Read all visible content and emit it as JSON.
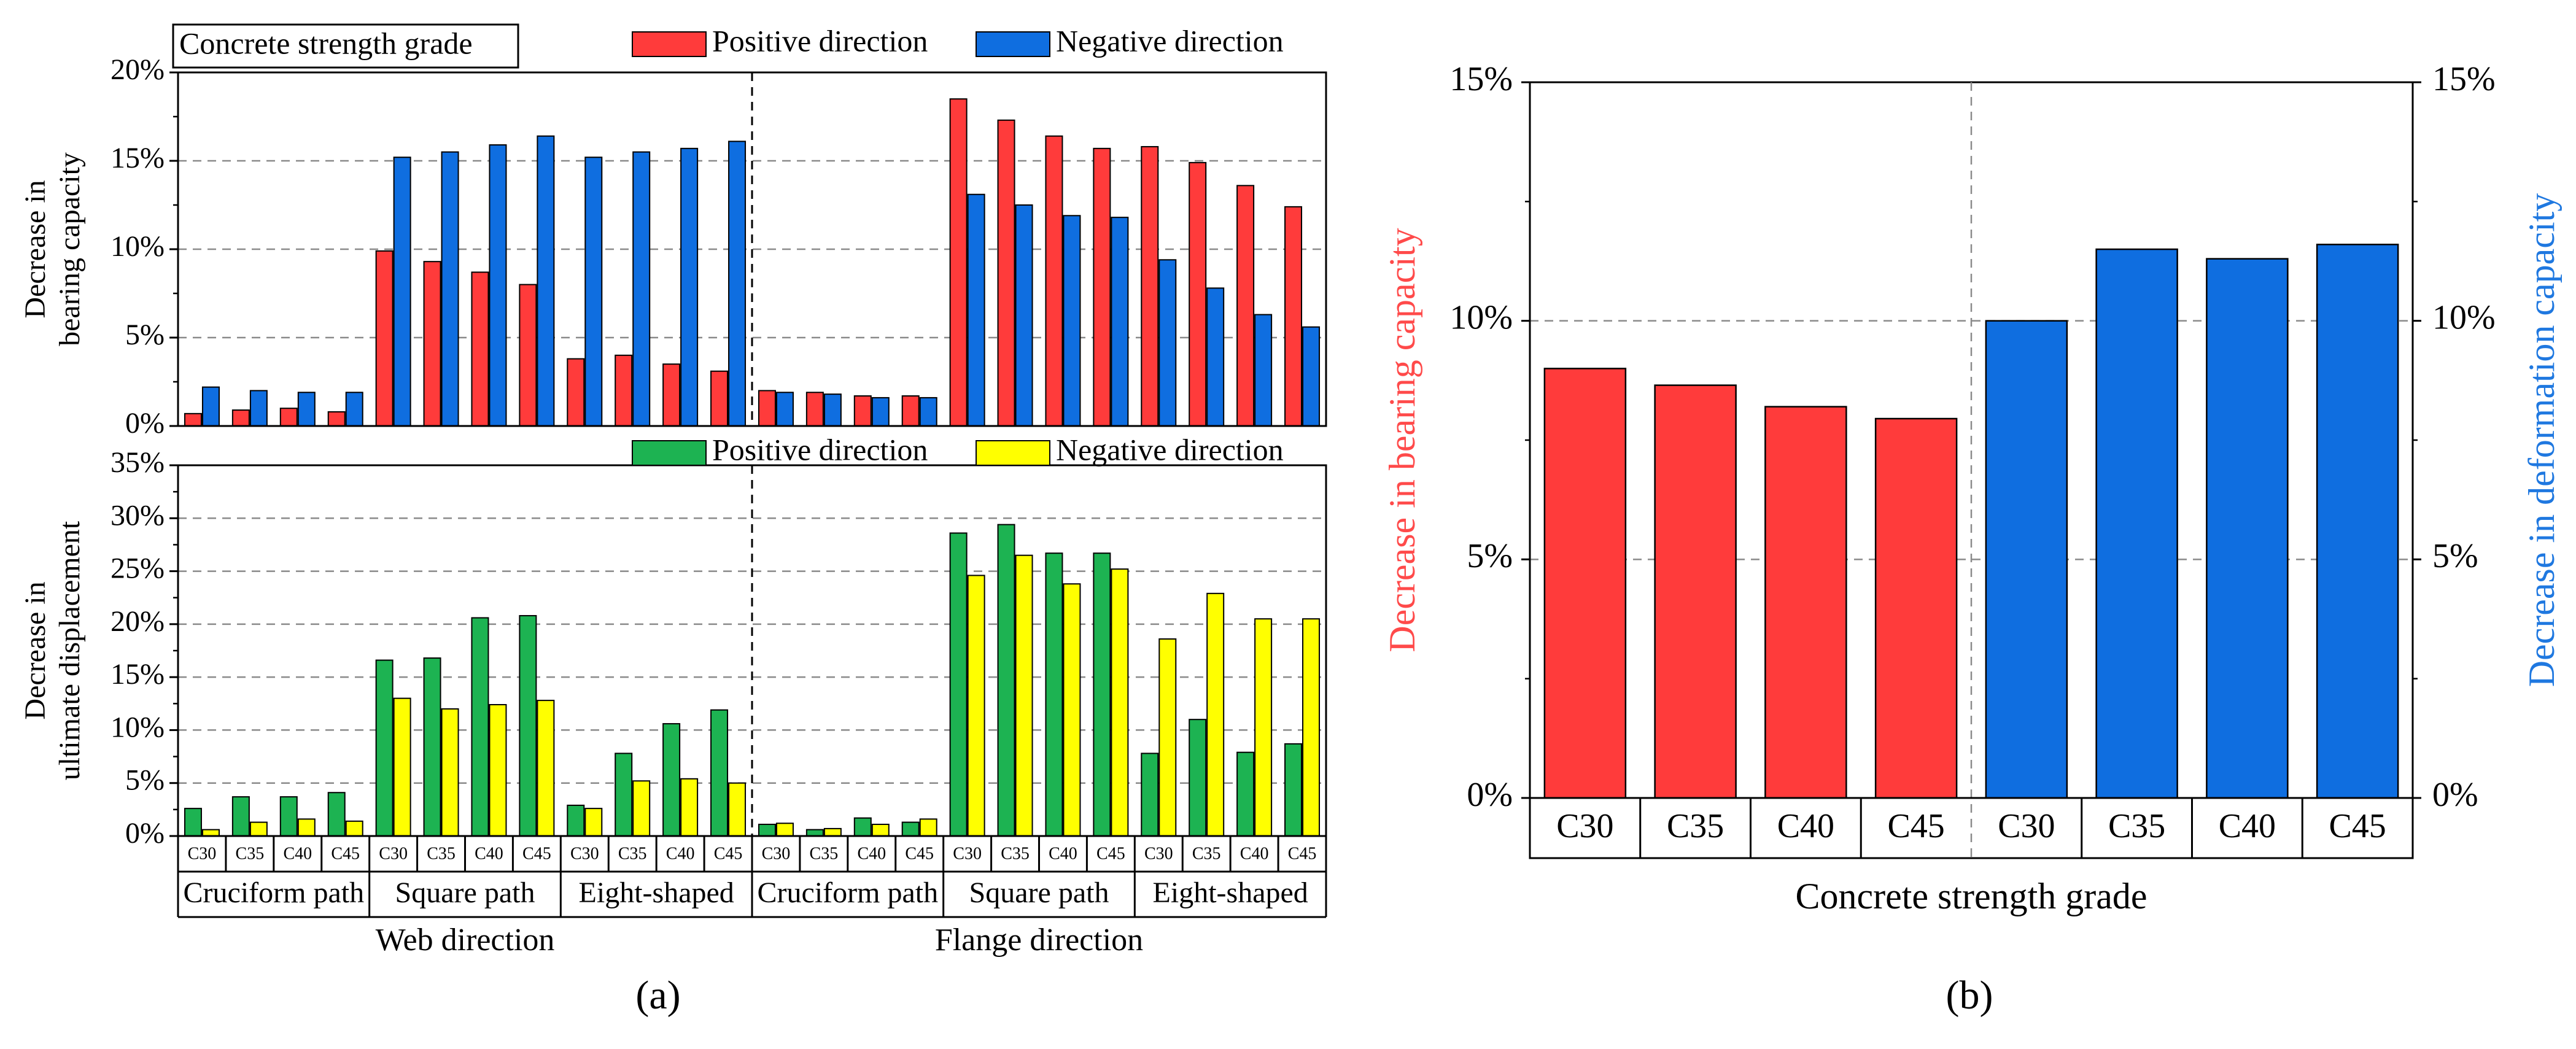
{
  "colors": {
    "red": "#ff3b3b",
    "blue": "#0f6ee0",
    "green": "#1db352",
    "yellow": "#ffff00",
    "red_text": "#ff4a4a",
    "blue_text": "#1f78e0",
    "axis": "#000000",
    "grid": "#8a8a8a"
  },
  "chart_data": [
    {
      "id": "a-top",
      "type": "bar",
      "panel": "(a)",
      "title": "Concrete strength grade",
      "ylabel": [
        "Decrease in",
        "bearing capacity"
      ],
      "ylim": [
        0,
        20
      ],
      "yticks": [
        0,
        5,
        10,
        15,
        20
      ],
      "ytick_labels": [
        "0%",
        "5%",
        "10%",
        "15%",
        "20%"
      ],
      "categories": [
        "C30",
        "C35",
        "C40",
        "C45",
        "C30",
        "C35",
        "C40",
        "C45",
        "C30",
        "C35",
        "C40",
        "C45",
        "C30",
        "C35",
        "C40",
        "C45",
        "C30",
        "C35",
        "C40",
        "C45",
        "C30",
        "C35",
        "C40",
        "C45"
      ],
      "series": [
        {
          "name": "Positive direction",
          "color_key": "red",
          "values": [
            0.7,
            0.9,
            1.0,
            0.8,
            9.9,
            9.3,
            8.7,
            8.0,
            3.8,
            4.0,
            3.5,
            3.1,
            2.0,
            1.9,
            1.7,
            1.7,
            18.5,
            17.3,
            16.4,
            15.7,
            15.8,
            14.9,
            13.6,
            12.4
          ]
        },
        {
          "name": "Negative direction",
          "color_key": "blue",
          "values": [
            2.2,
            2.0,
            1.9,
            1.9,
            15.2,
            15.5,
            15.9,
            16.4,
            15.2,
            15.5,
            15.7,
            16.1,
            1.9,
            1.8,
            1.6,
            1.6,
            13.1,
            12.5,
            11.9,
            11.8,
            9.4,
            7.8,
            6.3,
            5.6
          ]
        }
      ],
      "legend": "top-right",
      "grid": true
    },
    {
      "id": "a-bottom",
      "type": "bar",
      "panel": "(a)",
      "ylabel": [
        "Decrease in",
        "ultimate displacement"
      ],
      "ylim": [
        0,
        35
      ],
      "yticks": [
        0,
        5,
        10,
        15,
        20,
        25,
        30,
        35
      ],
      "ytick_labels": [
        "0%",
        "5%",
        "10%",
        "15%",
        "20%",
        "25%",
        "30%",
        "35%"
      ],
      "categories": [
        "C30",
        "C35",
        "C40",
        "C45",
        "C30",
        "C35",
        "C40",
        "C45",
        "C30",
        "C35",
        "C40",
        "C45",
        "C30",
        "C35",
        "C40",
        "C45",
        "C30",
        "C35",
        "C40",
        "C45",
        "C30",
        "C35",
        "C40",
        "C45"
      ],
      "groups": [
        "Cruciform path",
        "Square path",
        "Eight-shaped",
        "Cruciform path",
        "Square path",
        "Eight-shaped"
      ],
      "directions": [
        "Web direction",
        "Flange direction"
      ],
      "series": [
        {
          "name": "Positive direction",
          "color_key": "green",
          "values": [
            2.6,
            3.7,
            3.7,
            4.1,
            16.6,
            16.8,
            20.6,
            20.8,
            2.9,
            7.8,
            10.6,
            11.9,
            1.1,
            0.6,
            1.7,
            1.3,
            28.6,
            29.4,
            26.7,
            26.7,
            7.8,
            11.0,
            7.9,
            8.7
          ]
        },
        {
          "name": "Negative direction",
          "color_key": "yellow",
          "values": [
            0.6,
            1.3,
            1.6,
            1.4,
            13.0,
            12.0,
            12.4,
            12.8,
            2.6,
            5.2,
            5.4,
            5.0,
            1.2,
            0.7,
            1.1,
            1.6,
            24.6,
            26.5,
            23.8,
            25.2,
            18.6,
            22.9,
            20.5,
            20.5
          ]
        }
      ],
      "legend": "top-right",
      "grid": true
    },
    {
      "id": "b",
      "type": "bar",
      "panel": "(b)",
      "xlabel": "Concrete strength grade",
      "ylabel_left": "Decrease in bearing capacity",
      "ylabel_right": "Decrease in deformation capacity",
      "ylim": [
        0,
        15
      ],
      "yticks": [
        0,
        5,
        10,
        15
      ],
      "ytick_labels": [
        "0%",
        "5%",
        "10%",
        "15%"
      ],
      "categories": [
        "C30",
        "C35",
        "C40",
        "C45",
        "C30",
        "C35",
        "C40",
        "C45"
      ],
      "values": [
        9.0,
        8.65,
        8.2,
        7.95,
        10.0,
        11.5,
        11.3,
        11.6
      ],
      "bar_color_keys": [
        "red",
        "red",
        "red",
        "red",
        "blue",
        "blue",
        "blue",
        "blue"
      ],
      "grid": true
    }
  ],
  "labels": {
    "panel_a": "(a)",
    "panel_b": "(b)"
  }
}
